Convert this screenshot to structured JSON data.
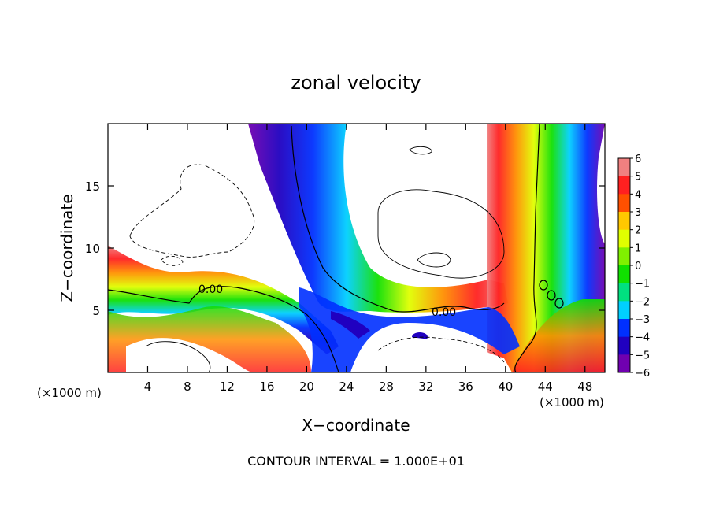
{
  "chart_data": {
    "type": "heatmap",
    "title": "zonal velocity",
    "xlabel": "X−coordinate",
    "ylabel": "Z−coordinate",
    "x_unit_left": "(×1000 m)",
    "x_unit_right": "(×1000 m)",
    "footer": "CONTOUR INTERVAL = 1.000E+01",
    "contour_label_1": "0.00",
    "contour_label_2": "0.00",
    "xlim": [
      0,
      50
    ],
    "ylim": [
      0,
      20
    ],
    "x_ticks": [
      4,
      8,
      12,
      16,
      20,
      24,
      28,
      32,
      36,
      40,
      44,
      48
    ],
    "x_tick_labels": [
      "4",
      "8",
      "12",
      "16",
      "20",
      "24",
      "28",
      "32",
      "36",
      "40",
      "44",
      "48"
    ],
    "y_ticks": [
      5,
      10,
      15
    ],
    "y_tick_labels": [
      "5",
      "10",
      "15"
    ],
    "colorbar": {
      "min": -6,
      "max": 6,
      "tick_labels": [
        "6",
        "5",
        "4",
        "3",
        "2",
        "1",
        "0",
        "−1",
        "−2",
        "−3",
        "−4",
        "−5",
        "−6"
      ],
      "colors": [
        "#f08080",
        "#ff2020",
        "#ff5000",
        "#ff9000",
        "#ffc800",
        "#e0ff00",
        "#80f000",
        "#10e000",
        "#00e080",
        "#00d0ff",
        "#0090ff",
        "#0030ff",
        "#2000c0",
        "#7000b0"
      ]
    }
  }
}
